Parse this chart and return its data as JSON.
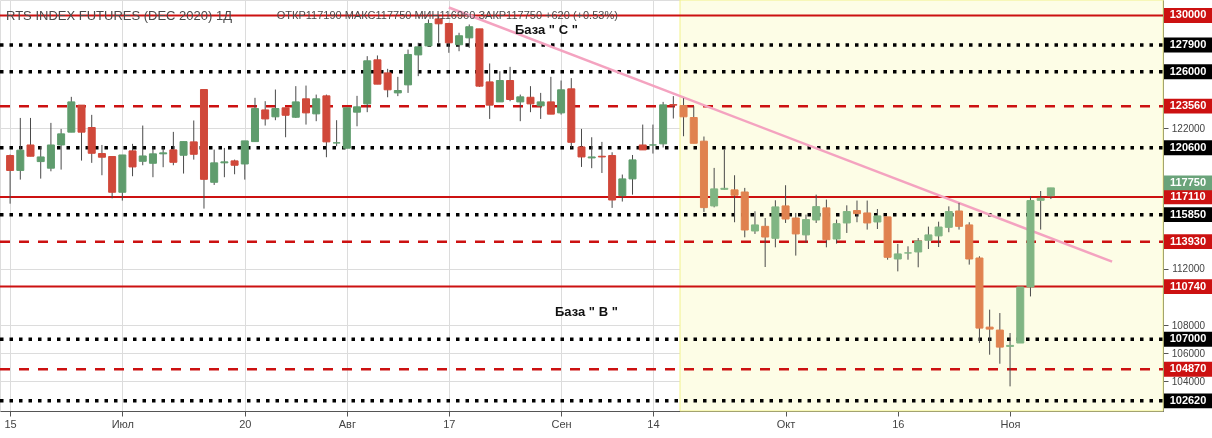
{
  "chart_data": {
    "type": "candlestick",
    "title": "RTS INDEX FUTURES (DEC 2020)   1Д",
    "subtitle": "ОТКР117190 МАКС117750 МИН116960 ЗАКР117750 +620 (+0.53%)",
    "categories": [
      "15",
      null,
      null,
      null,
      null,
      null,
      null,
      null,
      null,
      null,
      null,
      "Июл",
      null,
      null,
      null,
      null,
      null,
      null,
      null,
      null,
      null,
      null,
      null,
      "20",
      null,
      null,
      null,
      null,
      null,
      null,
      null,
      null,
      null,
      "Авг",
      null,
      null,
      null,
      null,
      null,
      null,
      null,
      null,
      null,
      "17",
      null,
      null,
      null,
      null,
      null,
      null,
      null,
      null,
      null,
      null,
      "Сен",
      null,
      null,
      null,
      null,
      null,
      null,
      null,
      null,
      "14",
      null,
      null,
      null,
      null,
      null,
      null,
      null,
      null,
      null,
      null,
      null,
      null,
      "Окт",
      null,
      null,
      null,
      null,
      null,
      null,
      null,
      null,
      null,
      null,
      "16",
      null,
      null,
      null,
      null,
      null,
      null,
      null,
      null,
      null,
      null,
      "Ноя",
      null,
      null,
      null,
      null,
      null,
      null,
      null,
      null,
      null,
      null,
      null,
      null,
      null,
      null
    ],
    "ohlc": [
      [
        120050,
        120120,
        116630,
        118990
      ],
      [
        118990,
        122720,
        118340,
        120430
      ],
      [
        120800,
        122720,
        120000,
        120000
      ],
      [
        119620,
        120710,
        118410,
        119950
      ],
      [
        119150,
        122370,
        118930,
        120800
      ],
      [
        120800,
        121940,
        119050,
        121590
      ],
      [
        121710,
        124220,
        121710,
        123860
      ],
      [
        123630,
        123630,
        119690,
        121710
      ],
      [
        122040,
        122940,
        119530,
        120210
      ],
      [
        120190,
        120800,
        118650,
        119930
      ],
      [
        119980,
        119980,
        117010,
        117440
      ],
      [
        117440,
        120090,
        116850,
        120090
      ],
      [
        120380,
        120880,
        118580,
        119240
      ],
      [
        119640,
        122180,
        119360,
        120020
      ],
      [
        119500,
        120710,
        118510,
        120170
      ],
      [
        120170,
        120660,
        119220,
        120240
      ],
      [
        120450,
        121730,
        119360,
        119570
      ],
      [
        120070,
        121040,
        118770,
        121040
      ],
      [
        121020,
        122540,
        119760,
        120140
      ],
      [
        124740,
        124740,
        116280,
        118360
      ],
      [
        118150,
        120470,
        117960,
        119530
      ],
      [
        119530,
        120590,
        118510,
        119600
      ],
      [
        119670,
        119760,
        118720,
        119360
      ],
      [
        119450,
        121090,
        118340,
        121090
      ],
      [
        121040,
        124150,
        121040,
        123390
      ],
      [
        123290,
        123910,
        122180,
        122650
      ],
      [
        122800,
        124740,
        122560,
        123390
      ],
      [
        123440,
        123440,
        121350,
        122910
      ],
      [
        122770,
        124980,
        122720,
        123860
      ],
      [
        124080,
        125020,
        122250,
        123080
      ],
      [
        123010,
        124380,
        122490,
        124080
      ],
      [
        124290,
        124380,
        119930,
        121020
      ],
      [
        120950,
        122560,
        120710,
        120950
      ],
      [
        120570,
        123440,
        120570,
        123440
      ],
      [
        123130,
        124290,
        122130,
        123510
      ],
      [
        123720,
        127110,
        123130,
        126780
      ],
      [
        126850,
        127160,
        125120,
        125120
      ],
      [
        125920,
        126210,
        124190,
        124720
      ],
      [
        124500,
        125640,
        124270,
        124670
      ],
      [
        125070,
        127580,
        124500,
        127230
      ],
      [
        127200,
        128060,
        125690,
        127770
      ],
      [
        127840,
        129720,
        127840,
        129430
      ],
      [
        129760,
        129950,
        128060,
        129410
      ],
      [
        129430,
        129480,
        127350,
        128060
      ],
      [
        127920,
        128770,
        127460,
        128560
      ],
      [
        128410,
        129360,
        127700,
        129200
      ],
      [
        129050,
        129050,
        124930,
        124980
      ],
      [
        125280,
        126590,
        122650,
        123630
      ],
      [
        123860,
        126040,
        123860,
        125380
      ],
      [
        125380,
        126350,
        123910,
        124030
      ],
      [
        123860,
        124380,
        122490,
        124220
      ],
      [
        124190,
        124980,
        123130,
        123720
      ],
      [
        123580,
        124500,
        122650,
        123860
      ],
      [
        123860,
        125640,
        122990,
        122990
      ],
      [
        123080,
        125380,
        122960,
        124720
      ],
      [
        124790,
        125550,
        120590,
        120990
      ],
      [
        120660,
        121940,
        119240,
        119950
      ],
      [
        119880,
        121350,
        119150,
        119950
      ],
      [
        120000,
        121020,
        118810,
        119950
      ],
      [
        120050,
        120280,
        116330,
        116890
      ],
      [
        117200,
        118700,
        116780,
        118390
      ],
      [
        118390,
        120090,
        117270,
        119740
      ],
      [
        120800,
        122250,
        120450,
        120450
      ],
      [
        120800,
        122250,
        120190,
        120800
      ],
      [
        120880,
        123860,
        120620,
        123650
      ],
      [
        123670,
        124270,
        122680,
        123630
      ],
      [
        123600,
        124120,
        121420,
        122800
      ],
      [
        122750,
        123550,
        120920,
        120920
      ],
      [
        121070,
        121400,
        116040,
        116350
      ],
      [
        116470,
        119170,
        116370,
        117680
      ],
      [
        117650,
        120450,
        117630,
        117720
      ],
      [
        117610,
        118650,
        115310,
        117230
      ],
      [
        117460,
        117750,
        114240,
        114760
      ],
      [
        114690,
        116090,
        114480,
        115120
      ],
      [
        115020,
        115610,
        112130,
        114260
      ],
      [
        114170,
        116870,
        113530,
        116400
      ],
      [
        116470,
        117940,
        115260,
        115540
      ],
      [
        115610,
        115970,
        112940,
        114480
      ],
      [
        114410,
        115850,
        113840,
        115500
      ],
      [
        115470,
        117270,
        115260,
        116420
      ],
      [
        116330,
        116920,
        113530,
        114070
      ],
      [
        114120,
        115500,
        113790,
        115210
      ],
      [
        115260,
        116510,
        114550,
        116070
      ],
      [
        116140,
        116850,
        115310,
        115920
      ],
      [
        115970,
        116850,
        114790,
        115260
      ],
      [
        115330,
        116250,
        114830,
        115760
      ],
      [
        115690,
        115690,
        112650,
        112820
      ],
      [
        112700,
        113770,
        111820,
        113060
      ],
      [
        113130,
        113600,
        112650,
        113130
      ],
      [
        113200,
        114190,
        112110,
        113980
      ],
      [
        114030,
        115000,
        113410,
        114410
      ],
      [
        114340,
        115350,
        113550,
        114970
      ],
      [
        114950,
        116440,
        114600,
        116070
      ],
      [
        116110,
        116680,
        114790,
        115020
      ],
      [
        115120,
        115310,
        112300,
        112700
      ],
      [
        112770,
        112890,
        106730,
        107790
      ],
      [
        107860,
        109100,
        105900,
        107720
      ],
      [
        107650,
        108860,
        105260,
        106440
      ],
      [
        106490,
        107440,
        103650,
        106560
      ],
      [
        106730,
        110710,
        106730,
        110710
      ],
      [
        110710,
        117160,
        110040,
        116850
      ],
      [
        116870,
        117530,
        114790,
        117010
      ],
      [
        117190,
        117750,
        116960,
        117750
      ],
      null,
      null,
      null,
      null,
      null,
      null,
      null,
      null,
      null,
      null
    ],
    "colors": [
      "#d0483a",
      "#5f9c6d",
      "#d0483a",
      "#5f9c6d",
      "#5f9c6d",
      "#5f9c6d",
      "#5f9c6d",
      "#d0483a",
      "#d0483a",
      "#d0483a",
      "#d0483a",
      "#5f9c6d",
      "#d0483a",
      "#5f9c6d",
      "#5f9c6d",
      "#5f9c6d",
      "#d0483a",
      "#5f9c6d",
      "#d0483a",
      "#d0483a",
      "#5f9c6d",
      "#5f9c6d",
      "#d0483a",
      "#5f9c6d",
      "#5f9c6d",
      "#d0483a",
      "#5f9c6d",
      "#d0483a",
      "#5f9c6d",
      "#d0483a",
      "#5f9c6d",
      "#d0483a",
      "#5f9c6d",
      "#5f9c6d",
      "#5f9c6d",
      "#5f9c6d",
      "#d0483a",
      "#d0483a",
      "#5f9c6d",
      "#5f9c6d",
      "#5f9c6d",
      "#5f9c6d",
      "#d0483a",
      "#d0483a",
      "#5f9c6d",
      "#5f9c6d",
      "#d0483a",
      "#d0483a",
      "#5f9c6d",
      "#d0483a",
      "#5f9c6d",
      "#d0483a",
      "#5f9c6d",
      "#d0483a",
      "#5f9c6d",
      "#d0483a",
      "#d0483a",
      "#5f9c6d",
      "#d0483a",
      "#d0483a",
      "#5f9c6d",
      "#5f9c6d",
      "#d0483a",
      "#5f9c6d",
      "#5f9c6d",
      "#d0483a",
      "#e0824f",
      "#e0824f",
      "#e0824f",
      "#80b583",
      "#80b583",
      "#e0824f",
      "#e0824f",
      "#80b583",
      "#e0824f",
      "#80b583",
      "#e0824f",
      "#e0824f",
      "#80b583",
      "#80b583",
      "#e0824f",
      "#80b583",
      "#80b583",
      "#e0824f",
      "#e0824f",
      "#80b583",
      "#e0824f",
      "#80b583",
      "#80b583",
      "#80b583",
      "#80b583",
      "#80b583",
      "#80b583",
      "#e0824f",
      "#e0824f",
      "#e0824f",
      "#e0824f",
      "#e0824f",
      "#80b583",
      "#80b583",
      "#80b583",
      "#80b583",
      "#80b583",
      null,
      null,
      null,
      null,
      null,
      null,
      null,
      null,
      null,
      null
    ],
    "series": [
      {
        "type": "line",
        "color": "#f4a3c0",
        "values": [
          null,
          null,
          null,
          null,
          null,
          null,
          null,
          null,
          null,
          null,
          null,
          null,
          null,
          null,
          null,
          null,
          null,
          null,
          null,
          null,
          null,
          null,
          null,
          null,
          null,
          null,
          null,
          null,
          null,
          null,
          null,
          null,
          null,
          null,
          null,
          null,
          null,
          null,
          null,
          null,
          null,
          null,
          null,
          130570,
          null,
          null,
          null,
          null,
          null,
          null,
          null,
          null,
          null,
          null,
          null,
          null,
          null,
          null,
          null,
          null,
          null,
          null,
          null,
          null,
          null,
          null,
          null,
          null,
          null,
          null,
          null,
          null,
          null,
          null,
          null,
          null,
          null,
          null,
          null,
          null,
          null,
          null,
          null,
          null,
          null,
          null,
          null,
          null,
          null,
          null,
          null,
          null,
          null,
          null,
          null,
          null,
          null,
          null,
          null,
          null,
          null,
          null,
          null,
          null,
          null,
          null,
          null,
          null,
          112510,
          null,
          null,
          null,
          null
        ]
      }
    ],
    "ylim": [
      101900,
      131100
    ],
    "yticks": [
      104000,
      106000,
      108000,
      112000,
      122000
    ],
    "grid": true,
    "ref_lines": [
      {
        "axis": "y",
        "value": 130000,
        "label": "130000",
        "color": "#cc1111",
        "line_style": "solid"
      },
      {
        "axis": "y",
        "value": 127900,
        "label": "127900",
        "color": "#000000",
        "line_style": "dotted"
      },
      {
        "axis": "y",
        "value": 126000,
        "label": "126000",
        "color": "#000000",
        "line_style": "dotted"
      },
      {
        "axis": "y",
        "value": 123560,
        "label": "123560",
        "color": "#cc1111",
        "line_style": "dashed"
      },
      {
        "axis": "y",
        "value": 120600,
        "label": "120600",
        "color": "#000000",
        "line_style": "dotted"
      },
      {
        "axis": "y",
        "value": 117110,
        "label": "117110",
        "color": "#cc1111",
        "line_style": "solid"
      },
      {
        "axis": "y",
        "value": 115850,
        "label": "115850",
        "color": "#000000",
        "line_style": "dotted"
      },
      {
        "axis": "y",
        "value": 113930,
        "label": "113930",
        "color": "#cc1111",
        "line_style": "dashed"
      },
      {
        "axis": "y",
        "value": 110740,
        "label": "110740",
        "color": "#cc1111",
        "line_style": "solid"
      },
      {
        "axis": "y",
        "value": 107000,
        "label": "107000",
        "color": "#000000",
        "line_style": "dotted"
      },
      {
        "axis": "y",
        "value": 104870,
        "label": "104870",
        "color": "#cc1111",
        "line_style": "dashed"
      },
      {
        "axis": "y",
        "value": 102620,
        "label": "102620",
        "color": "#000000",
        "line_style": "dotted"
      }
    ],
    "annotations": [
      "База  \" С \"",
      "База  \" В \"",
      "117750"
    ]
  }
}
